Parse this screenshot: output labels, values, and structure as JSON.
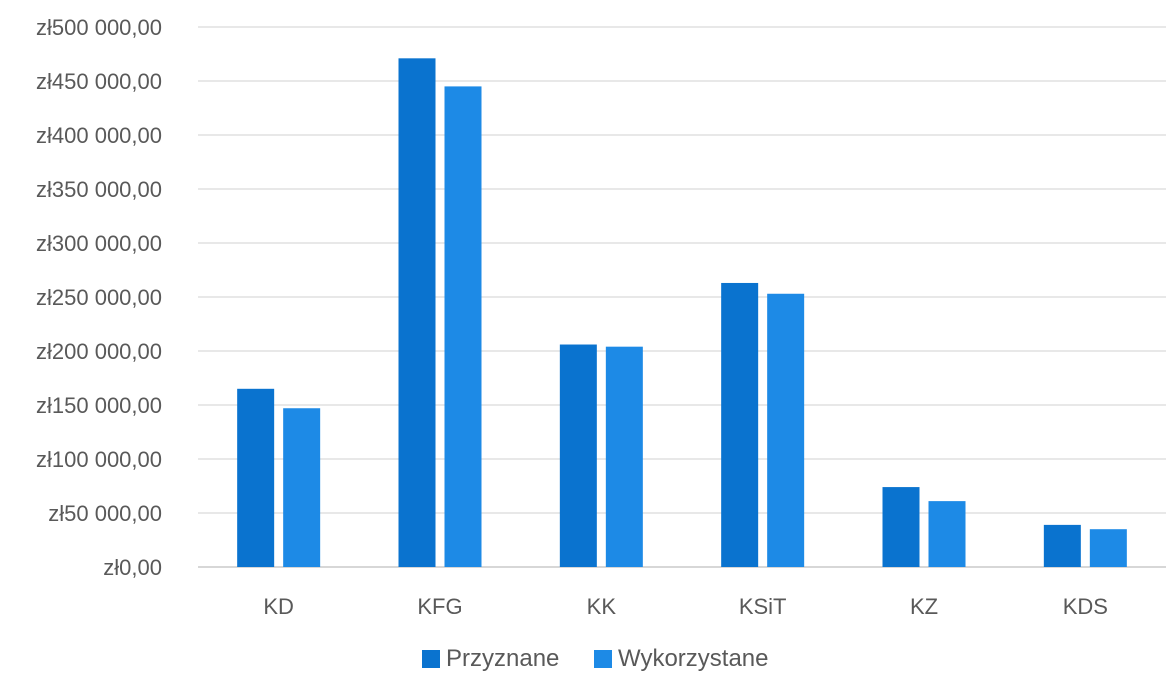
{
  "chart_data": {
    "type": "bar",
    "title": "",
    "xlabel": "",
    "ylabel": "",
    "categories": [
      "KD",
      "KFG",
      "KK",
      "KSiT",
      "KZ",
      "KDS"
    ],
    "series": [
      {
        "name": "Przyznane",
        "color": "#0a73cf",
        "values": [
          165000,
          471000,
          206000,
          263000,
          74000,
          39000
        ]
      },
      {
        "name": "Wykorzystane",
        "color": "#1d8ae6",
        "values": [
          147000,
          445000,
          204000,
          253000,
          61000,
          35000
        ]
      }
    ],
    "ylim": [
      0,
      500000
    ],
    "y_ticks": [
      "zł0,00",
      "zł50 000,00",
      "zł100 000,00",
      "zł150 000,00",
      "zł200 000,00",
      "zł250 000,00",
      "zł300 000,00",
      "zł350 000,00",
      "zł400 000,00",
      "zł450 000,00",
      "zł500 000,00"
    ],
    "y_tick_values": [
      0,
      50000,
      100000,
      150000,
      200000,
      250000,
      300000,
      350000,
      400000,
      450000,
      500000
    ],
    "grid": true,
    "legend_position": "bottom"
  }
}
